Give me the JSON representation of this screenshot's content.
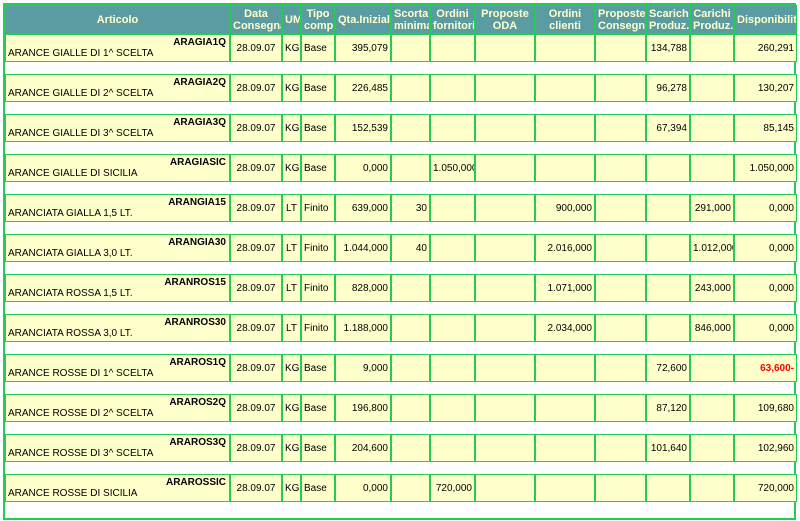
{
  "columns": [
    "Articolo",
    "Data Consegna",
    "UM",
    "Tipo comp.",
    "Qta.Iniziale",
    "Scorta minima",
    "Ordini fornitori",
    "Proposte ODA",
    "Ordini clienti",
    "Proposte Consegna",
    "Scarichi Produz.",
    "Carichi Produz.",
    "Disponibilità"
  ],
  "colors": {
    "header_bg": "#5b9ca3",
    "header_text": "#ffffcc",
    "row_bg": "#ffffcc",
    "border": "#22cc55",
    "negative": "#ff0000"
  },
  "rows": [
    {
      "code": "ARAGIA1Q",
      "desc": "ARANCE GIALLE DI 1^ SCELTA",
      "data": "28.09.07",
      "um": "KG",
      "tipo": "Base",
      "qta": "395,079",
      "scorta": "",
      "ord_forn": "",
      "prop_oda": "",
      "ord_cli": "",
      "prop_cons": "",
      "scarichi": "134,788",
      "carichi": "",
      "disp": "260,291",
      "neg": false
    },
    {
      "code": "ARAGIA2Q",
      "desc": "ARANCE GIALLE DI 2^ SCELTA",
      "data": "28.09.07",
      "um": "KG",
      "tipo": "Base",
      "qta": "226,485",
      "scorta": "",
      "ord_forn": "",
      "prop_oda": "",
      "ord_cli": "",
      "prop_cons": "",
      "scarichi": "96,278",
      "carichi": "",
      "disp": "130,207",
      "neg": false
    },
    {
      "code": "ARAGIA3Q",
      "desc": "ARANCE GIALLE DI 3^ SCELTA",
      "data": "28.09.07",
      "um": "KG",
      "tipo": "Base",
      "qta": "152,539",
      "scorta": "",
      "ord_forn": "",
      "prop_oda": "",
      "ord_cli": "",
      "prop_cons": "",
      "scarichi": "67,394",
      "carichi": "",
      "disp": "85,145",
      "neg": false
    },
    {
      "code": "ARAGIASIC",
      "desc": "ARANCE GIALLE DI SICILIA",
      "data": "28.09.07",
      "um": "KG",
      "tipo": "Base",
      "qta": "0,000",
      "scorta": "",
      "ord_forn": "1.050,000",
      "prop_oda": "",
      "ord_cli": "",
      "prop_cons": "",
      "scarichi": "",
      "carichi": "",
      "disp": "1.050,000",
      "neg": false
    },
    {
      "code": "ARANGIA15",
      "desc": "ARANCIATA GIALLA 1,5 LT.",
      "data": "28.09.07",
      "um": "LT",
      "tipo": "Finito",
      "qta": "639,000",
      "scorta": "30",
      "ord_forn": "",
      "prop_oda": "",
      "ord_cli": "900,000",
      "prop_cons": "",
      "scarichi": "",
      "carichi": "291,000",
      "disp": "0,000",
      "neg": false
    },
    {
      "code": "ARANGIA30",
      "desc": "ARANCIATA GIALLA 3,0 LT.",
      "data": "28.09.07",
      "um": "LT",
      "tipo": "Finito",
      "qta": "1.044,000",
      "scorta": "40",
      "ord_forn": "",
      "prop_oda": "",
      "ord_cli": "2.016,000",
      "prop_cons": "",
      "scarichi": "",
      "carichi": "1.012,000",
      "disp": "0,000",
      "neg": false
    },
    {
      "code": "ARANROS15",
      "desc": "ARANCIATA ROSSA 1,5 LT.",
      "data": "28.09.07",
      "um": "LT",
      "tipo": "Finito",
      "qta": "828,000",
      "scorta": "",
      "ord_forn": "",
      "prop_oda": "",
      "ord_cli": "1.071,000",
      "prop_cons": "",
      "scarichi": "",
      "carichi": "243,000",
      "disp": "0,000",
      "neg": false
    },
    {
      "code": "ARANROS30",
      "desc": "ARANCIATA ROSSA 3,0 LT.",
      "data": "28.09.07",
      "um": "LT",
      "tipo": "Finito",
      "qta": "1.188,000",
      "scorta": "",
      "ord_forn": "",
      "prop_oda": "",
      "ord_cli": "2.034,000",
      "prop_cons": "",
      "scarichi": "",
      "carichi": "846,000",
      "disp": "0,000",
      "neg": false
    },
    {
      "code": "ARAROS1Q",
      "desc": "ARANCE ROSSE DI 1^ SCELTA",
      "data": "28.09.07",
      "um": "KG",
      "tipo": "Base",
      "qta": "9,000",
      "scorta": "",
      "ord_forn": "",
      "prop_oda": "",
      "ord_cli": "",
      "prop_cons": "",
      "scarichi": "72,600",
      "carichi": "",
      "disp": "63,600-",
      "neg": true
    },
    {
      "code": "ARAROS2Q",
      "desc": "ARANCE ROSSE DI 2^ SCELTA",
      "data": "28.09.07",
      "um": "KG",
      "tipo": "Base",
      "qta": "196,800",
      "scorta": "",
      "ord_forn": "",
      "prop_oda": "",
      "ord_cli": "",
      "prop_cons": "",
      "scarichi": "87,120",
      "carichi": "",
      "disp": "109,680",
      "neg": false
    },
    {
      "code": "ARAROS3Q",
      "desc": "ARANCE ROSSE DI 3^ SCELTA",
      "data": "28.09.07",
      "um": "KG",
      "tipo": "Base",
      "qta": "204,600",
      "scorta": "",
      "ord_forn": "",
      "prop_oda": "",
      "ord_cli": "",
      "prop_cons": "",
      "scarichi": "101,640",
      "carichi": "",
      "disp": "102,960",
      "neg": false
    },
    {
      "code": "ARAROSSIC",
      "desc": "ARANCE ROSSE DI SICILIA",
      "data": "28.09.07",
      "um": "KG",
      "tipo": "Base",
      "qta": "0,000",
      "scorta": "",
      "ord_forn": "720,000",
      "prop_oda": "",
      "ord_cli": "",
      "prop_cons": "",
      "scarichi": "",
      "carichi": "",
      "disp": "720,000",
      "neg": false
    }
  ]
}
